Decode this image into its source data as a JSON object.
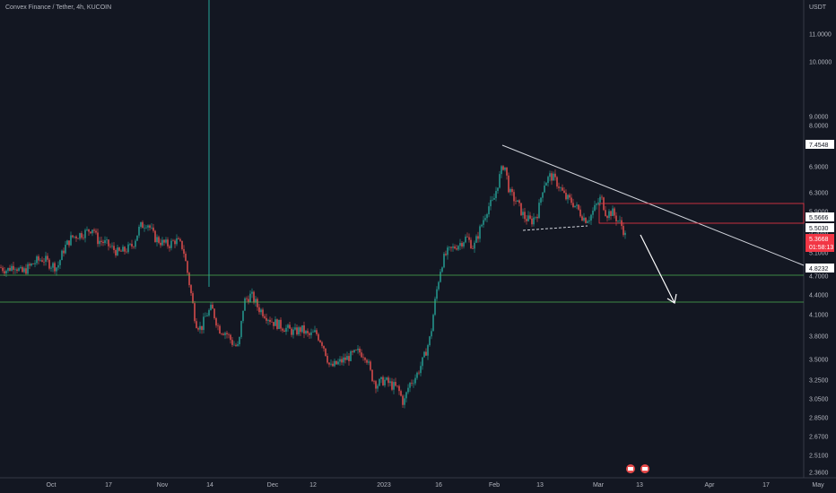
{
  "header": {
    "title": "Convex Finance / Tether, 4h, KUCOIN",
    "unit": "USDT"
  },
  "colors": {
    "background": "#131722",
    "up": "#26a69a",
    "down": "#ef5350",
    "trend": "#d1d4dc",
    "support": "#4caf50",
    "resistance": "#f23645"
  },
  "badges": {
    "b1": "7.4548",
    "b2": "5.5666",
    "b3": "5.5030",
    "b4": "5.3668",
    "b4_sub": "01:58:13",
    "b5": "4.8232"
  },
  "chart_data": {
    "type": "candlestick",
    "title": "Convex Finance / Tether, 4h, KUCOIN",
    "ylabel": "USDT",
    "ylim": [
      2.3,
      11.9
    ],
    "y_ticks": [
      {
        "v": 2.36,
        "label": "2.3600"
      },
      {
        "v": 2.51,
        "label": "2.5100"
      },
      {
        "v": 2.67,
        "label": "2.6700"
      },
      {
        "v": 2.85,
        "label": "2.8500"
      },
      {
        "v": 3.05,
        "label": "3.0500"
      },
      {
        "v": 3.25,
        "label": "3.2500"
      },
      {
        "v": 3.5,
        "label": "3.5000"
      },
      {
        "v": 3.8,
        "label": "3.8000"
      },
      {
        "v": 4.1,
        "label": "4.1000"
      },
      {
        "v": 4.4,
        "label": "4.4000"
      },
      {
        "v": 4.7,
        "label": "4.7000"
      },
      {
        "v": 5.1,
        "label": "5.1000"
      },
      {
        "v": 5.5,
        "label": "5.5000"
      },
      {
        "v": 5.9,
        "label": "5.9000"
      },
      {
        "v": 6.3,
        "label": "6.3000"
      },
      {
        "v": 6.9,
        "label": "6.9000"
      },
      {
        "v": 7.4,
        "label": "7.4000"
      },
      {
        "v": 8.0,
        "label": "8.0000"
      },
      {
        "v": 9.0,
        "label": "9.0000"
      },
      {
        "v": 10.0,
        "label": "10.0000"
      },
      {
        "v": 11.0,
        "label": "11.0000"
      }
    ],
    "x_ticks": [
      "Oct",
      "17",
      "Nov",
      "14",
      "Dec",
      "12",
      "2023",
      "16",
      "Feb",
      "13",
      "Mar",
      "13",
      "Apr",
      "17",
      "May"
    ],
    "price_path": [
      [
        0,
        4.85
      ],
      [
        8,
        4.8
      ],
      [
        16,
        4.9
      ],
      [
        24,
        4.75
      ],
      [
        32,
        4.85
      ],
      [
        40,
        4.95
      ],
      [
        48,
        5.0
      ],
      [
        56,
        4.9
      ],
      [
        64,
        4.85
      ],
      [
        72,
        5.2
      ],
      [
        80,
        5.4
      ],
      [
        88,
        5.45
      ],
      [
        96,
        5.5
      ],
      [
        104,
        5.6
      ],
      [
        108,
        5.35
      ],
      [
        116,
        5.3
      ],
      [
        124,
        5.2
      ],
      [
        132,
        5.1
      ],
      [
        140,
        5.15
      ],
      [
        148,
        5.25
      ],
      [
        156,
        5.6
      ],
      [
        164,
        5.7
      ],
      [
        172,
        5.4
      ],
      [
        180,
        5.3
      ],
      [
        188,
        5.25
      ],
      [
        196,
        5.35
      ],
      [
        204,
        5.2
      ],
      [
        212,
        4.5
      ],
      [
        218,
        4.0
      ],
      [
        224,
        3.9
      ],
      [
        230,
        4.1
      ],
      [
        236,
        4.2
      ],
      [
        244,
        3.9
      ],
      [
        252,
        3.85
      ],
      [
        260,
        3.7
      ],
      [
        266,
        3.65
      ],
      [
        272,
        4.3
      ],
      [
        280,
        4.4
      ],
      [
        288,
        4.2
      ],
      [
        296,
        4.1
      ],
      [
        304,
        4.0
      ],
      [
        312,
        3.95
      ],
      [
        320,
        3.9
      ],
      [
        328,
        3.85
      ],
      [
        336,
        3.9
      ],
      [
        344,
        3.8
      ],
      [
        352,
        3.85
      ],
      [
        360,
        3.7
      ],
      [
        368,
        3.4
      ],
      [
        376,
        3.45
      ],
      [
        384,
        3.5
      ],
      [
        392,
        3.55
      ],
      [
        400,
        3.6
      ],
      [
        408,
        3.55
      ],
      [
        414,
        3.3
      ],
      [
        420,
        3.2
      ],
      [
        428,
        3.25
      ],
      [
        436,
        3.2
      ],
      [
        444,
        3.15
      ],
      [
        450,
        3.0
      ],
      [
        456,
        3.2
      ],
      [
        464,
        3.3
      ],
      [
        472,
        3.5
      ],
      [
        480,
        3.8
      ],
      [
        486,
        4.4
      ],
      [
        492,
        4.9
      ],
      [
        498,
        5.1
      ],
      [
        506,
        5.2
      ],
      [
        514,
        5.3
      ],
      [
        520,
        5.4
      ],
      [
        528,
        5.2
      ],
      [
        536,
        5.6
      ],
      [
        544,
        6.0
      ],
      [
        550,
        6.1
      ],
      [
        556,
        6.6
      ],
      [
        562,
        7.0
      ],
      [
        568,
        6.3
      ],
      [
        576,
        6.1
      ],
      [
        584,
        5.8
      ],
      [
        592,
        5.7
      ],
      [
        600,
        5.9
      ],
      [
        606,
        6.5
      ],
      [
        614,
        6.7
      ],
      [
        622,
        6.5
      ],
      [
        630,
        6.2
      ],
      [
        638,
        6.1
      ],
      [
        646,
        5.9
      ],
      [
        652,
        5.75
      ],
      [
        658,
        5.8
      ],
      [
        664,
        6.0
      ],
      [
        670,
        6.2
      ],
      [
        676,
        5.85
      ],
      [
        682,
        5.9
      ],
      [
        688,
        5.75
      ],
      [
        694,
        5.6
      ],
      [
        698,
        5.37
      ]
    ]
  }
}
